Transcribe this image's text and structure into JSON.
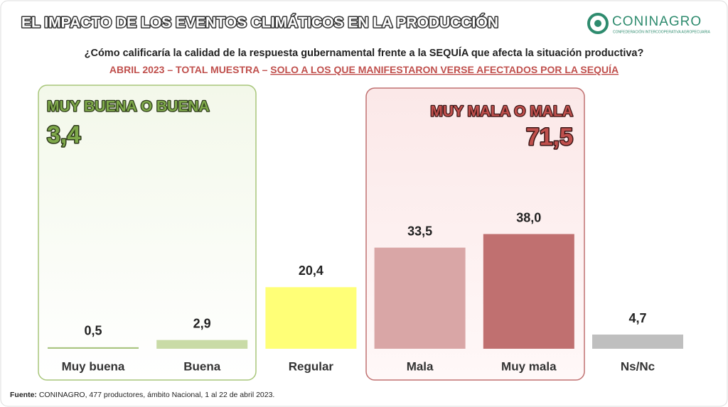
{
  "chart_data": {
    "type": "bar",
    "title": "EL IMPACTO DE LOS EVENTOS CLIMÁTICOS EN LA PRODUCCIÓN",
    "logo": {
      "name": "CONINAGRO",
      "tagline": "CONFEDERACIÓN INTERCOOPERATIVA AGROPECUARIA"
    },
    "question": "¿Cómo calificaría la calidad de la respuesta gubernamental frente a la SEQUÍA que afecta la situación productiva?",
    "subtitle": "ABRIL 2023 – TOTAL MUESTRA – ",
    "subtitle_underlined": "SOLO A LOS QUE MANIFESTARON VERSE AFECTADOS POR LA SEQUÍA",
    "categories": [
      "Muy buena",
      "Buena",
      "Regular",
      "Mala",
      "Muy mala",
      "Ns/Nc"
    ],
    "values": [
      0.5,
      2.9,
      20.4,
      33.5,
      38.0,
      4.7
    ],
    "value_labels": [
      "0,5",
      "2,9",
      "20,4",
      "33,5",
      "38,0",
      "4,7"
    ],
    "colors": [
      "#a9c47f",
      "#c9dba6",
      "#ffff77",
      "#d9a6a6",
      "#c07070",
      "#bfbfbf"
    ],
    "groups": [
      {
        "label": "MUY BUENA O BUENA",
        "total": 3.4,
        "total_label": "3,4"
      },
      {
        "label": "MUY MALA O MALA",
        "total": 71.5,
        "total_label": "71,5"
      }
    ],
    "source_label": "Fuente:",
    "source": " CONINAGRO, 477 productores, ámbito Nacional, 1 al 22 de abril 2023."
  }
}
